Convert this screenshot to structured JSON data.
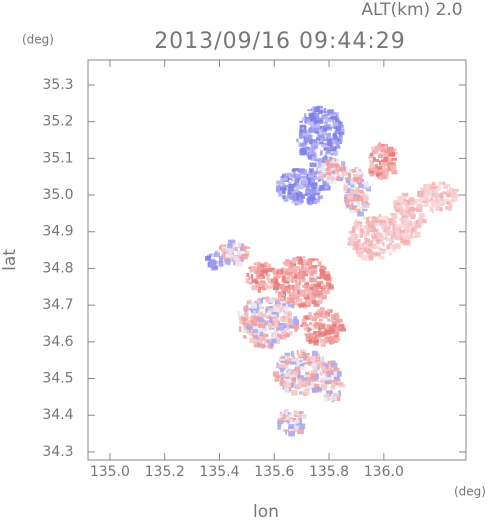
{
  "chart_data": {
    "type": "map",
    "title": "2013/09/16 09:44:29",
    "subtitle": "ALT(km) 2.0",
    "y_unit": "(deg)",
    "x_unit": "(deg)",
    "x_label": "lon",
    "y_label": "lat",
    "xlim": [
      134.92,
      136.3
    ],
    "ylim": [
      34.278,
      35.368
    ],
    "xticks": [
      {
        "value": 135.0,
        "label": "135.0"
      },
      135.2,
      135.4,
      135.6,
      135.8,
      {
        "value": 136.0,
        "label": "136.0"
      }
    ],
    "yticks": [
      35.3,
      35.2,
      35.1,
      {
        "value": 35.0,
        "label": "35.0"
      },
      34.9,
      34.8,
      34.7,
      34.6,
      34.5,
      34.4,
      34.3
    ]
  }
}
